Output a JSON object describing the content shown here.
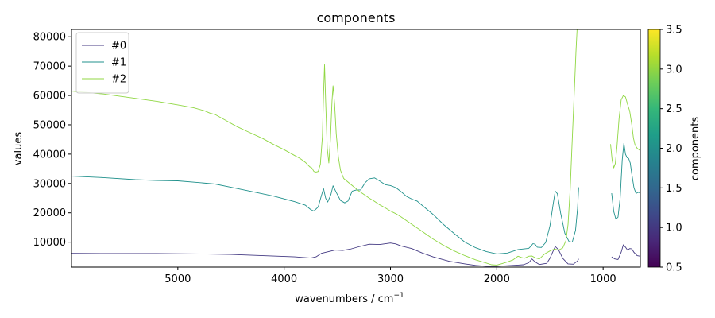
{
  "chart_data": {
    "type": "line",
    "title": "components",
    "xlabel": "wavenumbers / cm",
    "xlabel_sup": "−1",
    "ylabel": "values",
    "x_inverted": true,
    "xlim": [
      6000,
      650
    ],
    "ylim": [
      1500,
      82500
    ],
    "x_ticks": [
      5000,
      4000,
      3000,
      2000,
      1000
    ],
    "y_ticks": [
      10000,
      20000,
      30000,
      40000,
      50000,
      60000,
      70000,
      80000
    ],
    "grid": false,
    "legend_position": "top-left",
    "series": [
      {
        "name": "#0",
        "color": "#443a83",
        "segments": [
          [
            [
              6000,
              6200
            ],
            [
              5600,
              6100
            ],
            [
              5200,
              6100
            ],
            [
              4800,
              6000
            ],
            [
              4500,
              5800
            ],
            [
              4200,
              5400
            ],
            [
              3900,
              5000
            ],
            [
              3750,
              4600
            ],
            [
              3700,
              5000
            ],
            [
              3650,
              6200
            ],
            [
              3580,
              6800
            ],
            [
              3520,
              7300
            ],
            [
              3450,
              7200
            ],
            [
              3380,
              7600
            ],
            [
              3300,
              8400
            ],
            [
              3200,
              9300
            ],
            [
              3100,
              9200
            ],
            [
              3000,
              9700
            ],
            [
              2950,
              9400
            ],
            [
              2900,
              8700
            ],
            [
              2800,
              7800
            ],
            [
              2700,
              6300
            ],
            [
              2600,
              5000
            ],
            [
              2450,
              3500
            ],
            [
              2300,
              2600
            ],
            [
              2200,
              2100
            ],
            [
              2100,
              1800
            ],
            [
              2000,
              1800
            ],
            [
              1900,
              2000
            ],
            [
              1800,
              2200
            ],
            [
              1750,
              2300
            ],
            [
              1700,
              3000
            ],
            [
              1670,
              4300
            ],
            [
              1640,
              3300
            ],
            [
              1600,
              2400
            ],
            [
              1530,
              2800
            ],
            [
              1500,
              4500
            ],
            [
              1470,
              7000
            ],
            [
              1450,
              8500
            ],
            [
              1420,
              7500
            ],
            [
              1380,
              4500
            ],
            [
              1330,
              2600
            ],
            [
              1280,
              2500
            ],
            [
              1240,
              3600
            ],
            [
              1230,
              4300
            ]
          ],
          [
            [
              920,
              5000
            ],
            [
              890,
              4300
            ],
            [
              860,
              4100
            ],
            [
              830,
              6600
            ],
            [
              810,
              9100
            ],
            [
              790,
              8300
            ],
            [
              770,
              7300
            ],
            [
              750,
              7800
            ],
            [
              730,
              7700
            ],
            [
              710,
              6500
            ],
            [
              680,
              5400
            ],
            [
              650,
              5200
            ]
          ]
        ]
      },
      {
        "name": "#1",
        "color": "#21918c",
        "segments": [
          [
            [
              6000,
              32500
            ],
            [
              5700,
              32000
            ],
            [
              5400,
              31300
            ],
            [
              5200,
              31000
            ],
            [
              5000,
              30900
            ],
            [
              4800,
              30300
            ],
            [
              4650,
              29800
            ],
            [
              4500,
              28700
            ],
            [
              4300,
              27200
            ],
            [
              4100,
              25700
            ],
            [
              3900,
              23800
            ],
            [
              3800,
              22600
            ],
            [
              3750,
              21100
            ],
            [
              3720,
              20600
            ],
            [
              3680,
              22000
            ],
            [
              3650,
              25800
            ],
            [
              3630,
              28300
            ],
            [
              3610,
              25000
            ],
            [
              3590,
              23700
            ],
            [
              3560,
              26200
            ],
            [
              3540,
              29200
            ],
            [
              3510,
              27000
            ],
            [
              3470,
              24200
            ],
            [
              3430,
              23400
            ],
            [
              3400,
              24000
            ],
            [
              3360,
              27400
            ],
            [
              3320,
              27800
            ],
            [
              3280,
              27800
            ],
            [
              3240,
              30200
            ],
            [
              3200,
              31600
            ],
            [
              3150,
              31900
            ],
            [
              3100,
              30800
            ],
            [
              3050,
              29600
            ],
            [
              3000,
              29300
            ],
            [
              2950,
              28600
            ],
            [
              2900,
              27200
            ],
            [
              2850,
              25600
            ],
            [
              2800,
              24700
            ],
            [
              2750,
              24000
            ],
            [
              2700,
              22500
            ],
            [
              2600,
              19500
            ],
            [
              2500,
              16000
            ],
            [
              2400,
              12900
            ],
            [
              2300,
              10000
            ],
            [
              2200,
              8100
            ],
            [
              2100,
              6800
            ],
            [
              2000,
              6000
            ],
            [
              1900,
              6300
            ],
            [
              1800,
              7500
            ],
            [
              1700,
              7900
            ],
            [
              1680,
              8600
            ],
            [
              1660,
              9500
            ],
            [
              1640,
              9300
            ],
            [
              1620,
              8300
            ],
            [
              1580,
              8200
            ],
            [
              1540,
              9900
            ],
            [
              1500,
              15500
            ],
            [
              1470,
              23000
            ],
            [
              1450,
              27400
            ],
            [
              1430,
              26500
            ],
            [
              1400,
              20000
            ],
            [
              1360,
              13000
            ],
            [
              1320,
              10200
            ],
            [
              1290,
              10000
            ],
            [
              1260,
              14000
            ],
            [
              1240,
              21500
            ],
            [
              1230,
              28700
            ]
          ],
          [
            [
              920,
              26700
            ],
            [
              900,
              20500
            ],
            [
              880,
              17800
            ],
            [
              860,
              18500
            ],
            [
              840,
              25000
            ],
            [
              820,
              38000
            ],
            [
              805,
              43700
            ],
            [
              790,
              40000
            ],
            [
              775,
              38800
            ],
            [
              760,
              38500
            ],
            [
              745,
              37000
            ],
            [
              730,
              33200
            ],
            [
              710,
              28500
            ],
            [
              690,
              26600
            ],
            [
              670,
              27000
            ],
            [
              650,
              26800
            ]
          ]
        ]
      },
      {
        "name": "#2",
        "color": "#90d743",
        "segments": [
          [
            [
              6000,
              61500
            ],
            [
              5700,
              60500
            ],
            [
              5400,
              59000
            ],
            [
              5200,
              58000
            ],
            [
              5000,
              56800
            ],
            [
              4850,
              55800
            ],
            [
              4750,
              54800
            ],
            [
              4700,
              54000
            ],
            [
              4650,
              53500
            ],
            [
              4550,
              51500
            ],
            [
              4450,
              49500
            ],
            [
              4350,
              47800
            ],
            [
              4200,
              45300
            ],
            [
              4100,
              43300
            ],
            [
              4000,
              41500
            ],
            [
              3900,
              39500
            ],
            [
              3850,
              38500
            ],
            [
              3800,
              37200
            ],
            [
              3760,
              35700
            ],
            [
              3740,
              35300
            ],
            [
              3720,
              34100
            ],
            [
              3700,
              33900
            ],
            [
              3680,
              34100
            ],
            [
              3660,
              36500
            ],
            [
              3640,
              46000
            ],
            [
              3630,
              60000
            ],
            [
              3620,
              70500
            ],
            [
              3610,
              58000
            ],
            [
              3595,
              42000
            ],
            [
              3580,
              37000
            ],
            [
              3565,
              45000
            ],
            [
              3550,
              58000
            ],
            [
              3540,
              63300
            ],
            [
              3525,
              57000
            ],
            [
              3510,
              47000
            ],
            [
              3490,
              39000
            ],
            [
              3470,
              34500
            ],
            [
              3440,
              31700
            ],
            [
              3400,
              30500
            ],
            [
              3350,
              29000
            ],
            [
              3300,
              27500
            ],
            [
              3250,
              26300
            ],
            [
              3200,
              25000
            ],
            [
              3150,
              23900
            ],
            [
              3100,
              22700
            ],
            [
              3050,
              21700
            ],
            [
              3000,
              20600
            ],
            [
              2950,
              19700
            ],
            [
              2900,
              18600
            ],
            [
              2800,
              16100
            ],
            [
              2700,
              13600
            ],
            [
              2600,
              11100
            ],
            [
              2500,
              8900
            ],
            [
              2400,
              7000
            ],
            [
              2300,
              5400
            ],
            [
              2200,
              4000
            ],
            [
              2100,
              2900
            ],
            [
              2050,
              2300
            ],
            [
              2000,
              2200
            ],
            [
              1950,
              2700
            ],
            [
              1900,
              3300
            ],
            [
              1850,
              3900
            ],
            [
              1800,
              5200
            ],
            [
              1770,
              4800
            ],
            [
              1740,
              4500
            ],
            [
              1700,
              5200
            ],
            [
              1670,
              5300
            ],
            [
              1640,
              4700
            ],
            [
              1600,
              4300
            ],
            [
              1550,
              6000
            ],
            [
              1500,
              7000
            ],
            [
              1470,
              7500
            ],
            [
              1450,
              7600
            ],
            [
              1420,
              7300
            ],
            [
              1380,
              8000
            ],
            [
              1350,
              10500
            ],
            [
              1330,
              16000
            ],
            [
              1310,
              28000
            ],
            [
              1290,
              45000
            ],
            [
              1270,
              62000
            ],
            [
              1255,
              75000
            ],
            [
              1245,
              82500
            ]
          ],
          [
            [
              930,
              43400
            ],
            [
              915,
              38000
            ],
            [
              900,
              35300
            ],
            [
              885,
              36800
            ],
            [
              870,
              42500
            ],
            [
              850,
              52000
            ],
            [
              830,
              58500
            ],
            [
              810,
              60000
            ],
            [
              790,
              59500
            ],
            [
              770,
              57000
            ],
            [
              750,
              54700
            ],
            [
              730,
              50000
            ],
            [
              715,
              45500
            ],
            [
              700,
              43200
            ],
            [
              680,
              42000
            ],
            [
              650,
              41200
            ]
          ]
        ]
      }
    ],
    "colorbar": {
      "label": "components",
      "range": [
        0.5,
        3.5
      ],
      "ticks": [
        0.5,
        1.0,
        1.5,
        2.0,
        2.5,
        3.0,
        3.5
      ],
      "tick_labels": [
        "0.5",
        "1.0",
        "1.5",
        "2.0",
        "2.5",
        "3.0",
        "3.5"
      ],
      "colormap": "viridis",
      "colormap_stops": [
        "#440154",
        "#482878",
        "#3e4989",
        "#31688e",
        "#26828e",
        "#1f9e89",
        "#35b779",
        "#6ece58",
        "#b5de2b",
        "#fde725"
      ]
    }
  }
}
